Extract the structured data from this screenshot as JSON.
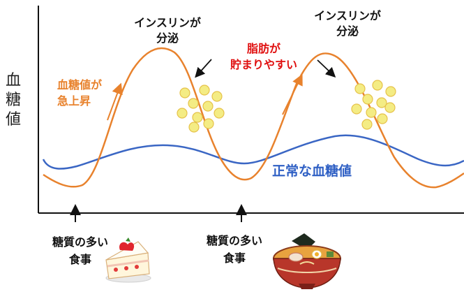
{
  "y_axis_label": [
    "血",
    "糖",
    "値"
  ],
  "insulin_label_1": [
    "インスリンが",
    "分泌"
  ],
  "insulin_label_2": [
    "インスリンが",
    "分泌"
  ],
  "spike_label": [
    "血糖値が",
    "急上昇"
  ],
  "fat_label": [
    "脂肪が",
    "貯まりやすい"
  ],
  "normal_label": "正常な血糖値",
  "meal_label_1": [
    "糖質の多い",
    "食事"
  ],
  "meal_label_2": [
    "糖質の多い",
    "食事"
  ],
  "colors": {
    "spike_curve": "#e8822d",
    "normal_curve": "#3a66c4",
    "fat_text": "#e01010",
    "fat_fill": "#f4ec84",
    "axis": "#111111"
  },
  "icons": [
    "cake-icon",
    "ramen-bowl-icon"
  ]
}
